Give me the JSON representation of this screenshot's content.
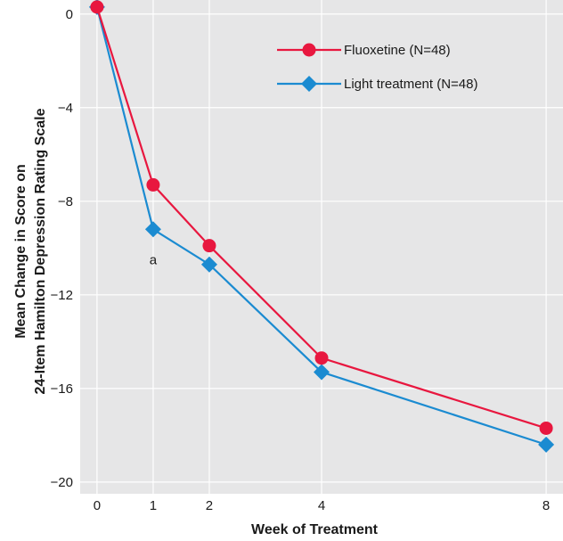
{
  "chart_data": {
    "type": "line",
    "title": "",
    "xlabel": "Week of Treatment",
    "ylabel_line1": "Mean Change in Score on",
    "ylabel_line2": "24-Item Hamilton Depression Rating Scale",
    "x": [
      0,
      1,
      2,
      4,
      8
    ],
    "xticks": [
      "0",
      "1",
      "2",
      "4",
      "8"
    ],
    "yticks": [
      "0",
      "−4",
      "−8",
      "−12",
      "−16",
      "−20"
    ],
    "ytick_values": [
      0,
      -4,
      -8,
      -12,
      -16,
      -20
    ],
    "xlim": [
      -0.3,
      8.3
    ],
    "ylim": [
      -20.5,
      0.6
    ],
    "grid": true,
    "legend_position": "top-right",
    "series": [
      {
        "name": "Fluoxetine (N=48)",
        "marker": "circle",
        "color": "#e8173f",
        "values": [
          0.3,
          -7.3,
          -9.9,
          -14.7,
          -17.7
        ]
      },
      {
        "name": "Light treatment (N=48)",
        "marker": "diamond",
        "color": "#1b8bd1",
        "values": [
          0.3,
          -9.2,
          -10.7,
          -15.3,
          -18.4
        ]
      }
    ],
    "annotations": [
      {
        "text": "a",
        "x": 1,
        "y": -10.5
      }
    ]
  },
  "colors": {
    "plot_background": "#e6e6e7",
    "grid": "#ffffff"
  }
}
